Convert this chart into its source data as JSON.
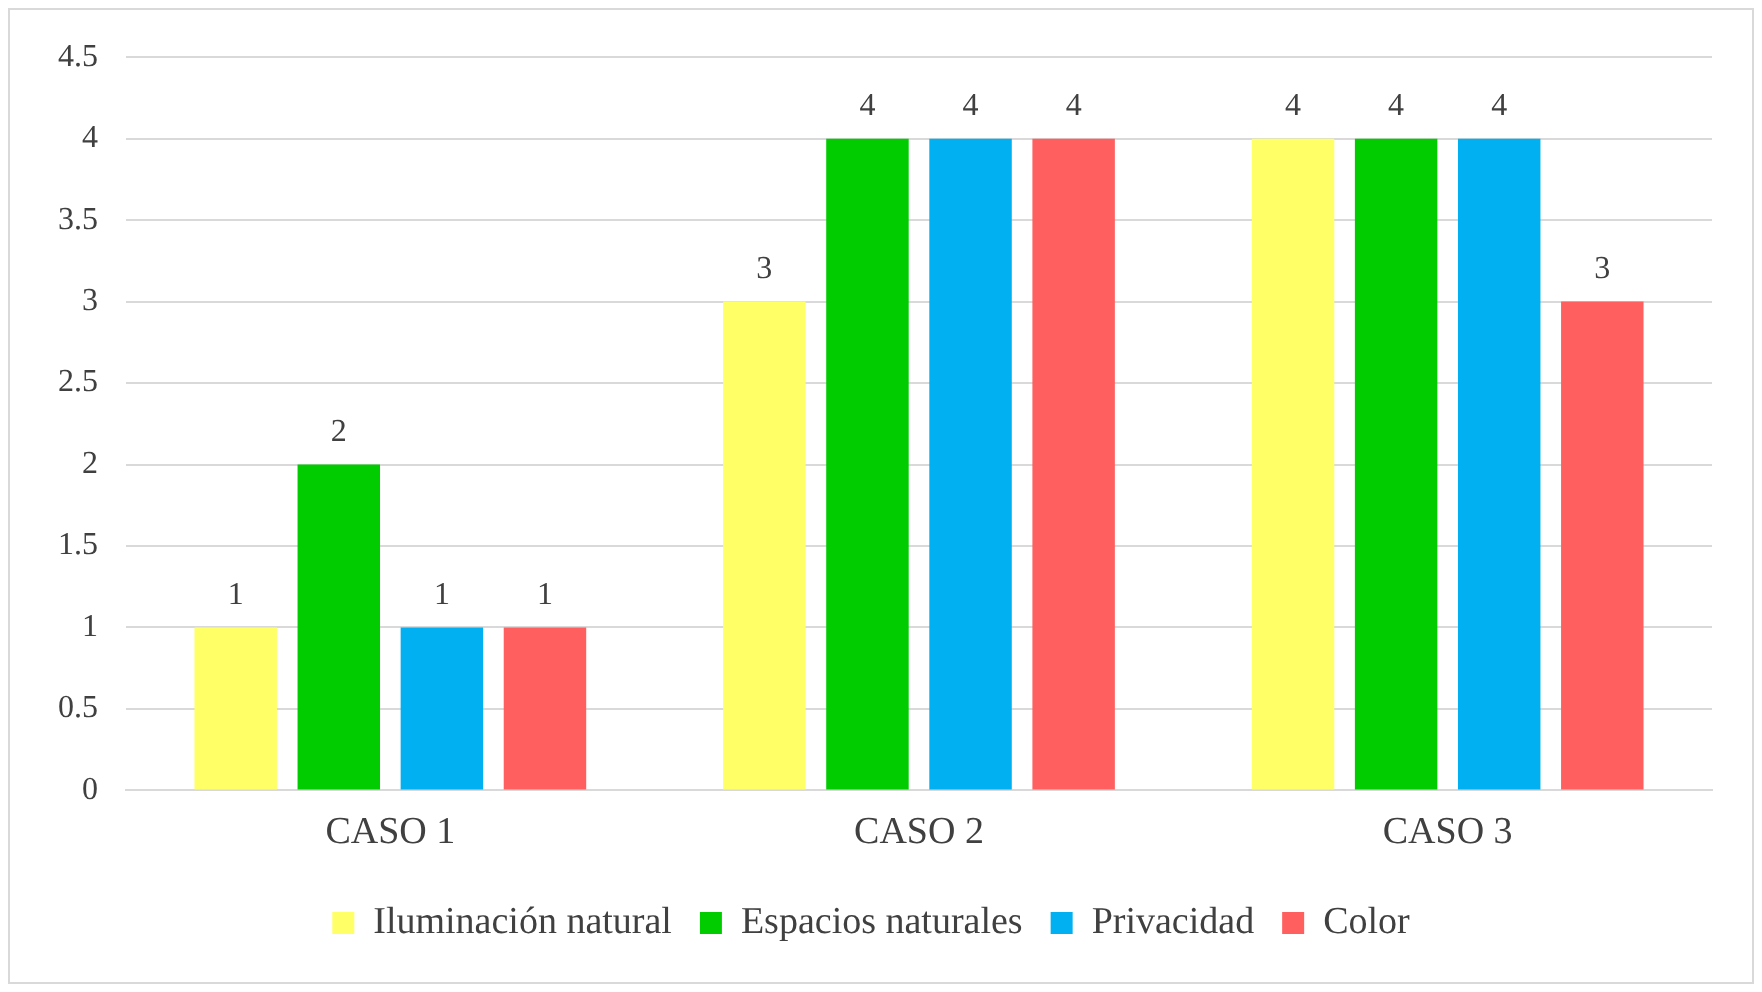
{
  "chart_data": {
    "type": "bar",
    "categories": [
      "CASO 1",
      "CASO 2",
      "CASO 3"
    ],
    "series": [
      {
        "name": "Iluminación natural",
        "color": "#ffff66",
        "values": [
          1,
          3,
          4
        ]
      },
      {
        "name": "Espacios naturales",
        "color": "#00cc00",
        "values": [
          2,
          4,
          4
        ]
      },
      {
        "name": "Privacidad",
        "color": "#00b0f0",
        "values": [
          1,
          4,
          4
        ]
      },
      {
        "name": "Color",
        "color": "#ff5f5f",
        "values": [
          1,
          4,
          3
        ]
      }
    ],
    "ylim": [
      0,
      4.5
    ],
    "yticks": [
      0,
      0.5,
      1,
      1.5,
      2,
      2.5,
      3,
      3.5,
      4,
      4.5
    ],
    "grid": "y",
    "legend": "bottom",
    "data_labels": true
  }
}
